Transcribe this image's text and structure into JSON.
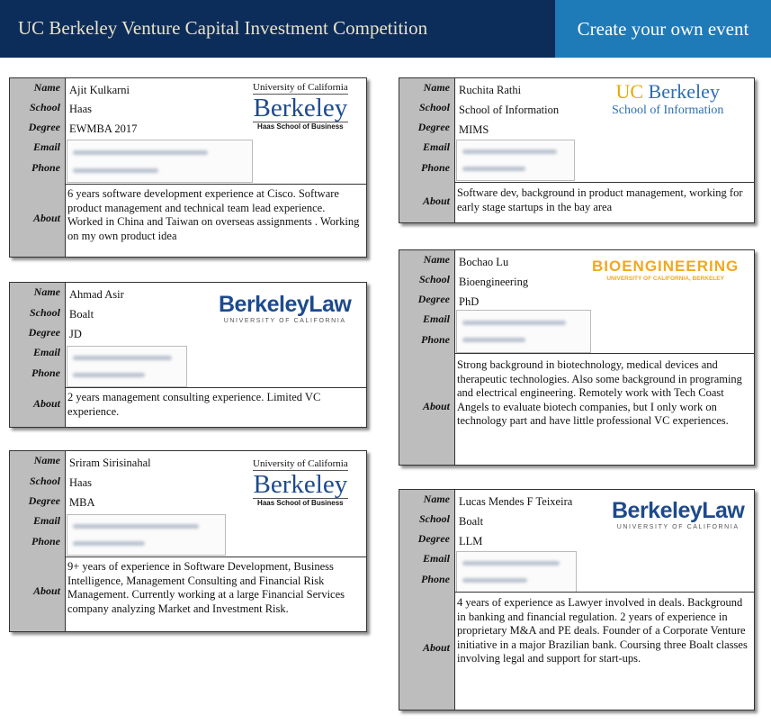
{
  "header": {
    "title": "UC Berkeley Venture Capital Investment Competition",
    "create_button": "Create your own event"
  },
  "field_labels": {
    "name": "Name",
    "school": "School",
    "degree": "Degree",
    "email": "Email",
    "phone": "Phone",
    "about": "About"
  },
  "logos": {
    "uc": "University of California",
    "berkeley": "Berkeley",
    "haas_school": "Haas School of Business",
    "berkeley_law": "BerkeleyLaw",
    "law_sub": "UNIVERSITY OF CALIFORNIA",
    "ucb_uc": "UC",
    "ucb_berkeley": "Berkeley",
    "ischool": "School of Information",
    "bio": "BIOENGINEERING",
    "bio_sub": "UNIVERSITY OF CALIFORNIA, BERKELEY"
  },
  "profiles": [
    {
      "name": "Ajit Kulkarni",
      "school": "Haas",
      "degree": "EWMBA 2017",
      "about": "6 years software development experience at Cisco. Software product management and technical team lead experience. Worked in China and Taiwan on overseas assignments . Working on my own product idea"
    },
    {
      "name": "Ahmad Asir",
      "school": "Boalt",
      "degree": "JD",
      "about": "2 years management consulting experience. Limited VC experience."
    },
    {
      "name": "Sriram Sirisinahal",
      "school": "Haas",
      "degree": "MBA",
      "about": "9+ years of experience in Software Development, Business Intelligence, Management Consulting and Financial Risk Management. Currently working at a large Financial Services company analyzing Market and Investment Risk."
    },
    {
      "name": "Ruchita Rathi",
      "school": "School of Information",
      "degree": "MIMS",
      "about": "Software dev, background in product management, working for early stage startups in the bay area"
    },
    {
      "name": "Bochao Lu",
      "school": "Bioengineering",
      "degree": "PhD",
      "about": "Strong background in biotechnology, medical devices and therapeutic technologies. Also some background in programing and electrical engineering. Remotely work with Tech Coast Angels to evaluate biotech companies, but I only work on technology part and have little professional VC experiences."
    },
    {
      "name": "Lucas Mendes F Teixeira",
      "school": "Boalt",
      "degree": "LLM",
      "about": "4 years of experience as Lawyer involved in deals. Background in banking and financial regulation. 2 years of experience in proprietary M&A and PE deals. Founder of a Corporate Venture initiative in a major Brazilian bank. Coursing three Boalt classes involving legal and support for start-ups."
    }
  ]
}
